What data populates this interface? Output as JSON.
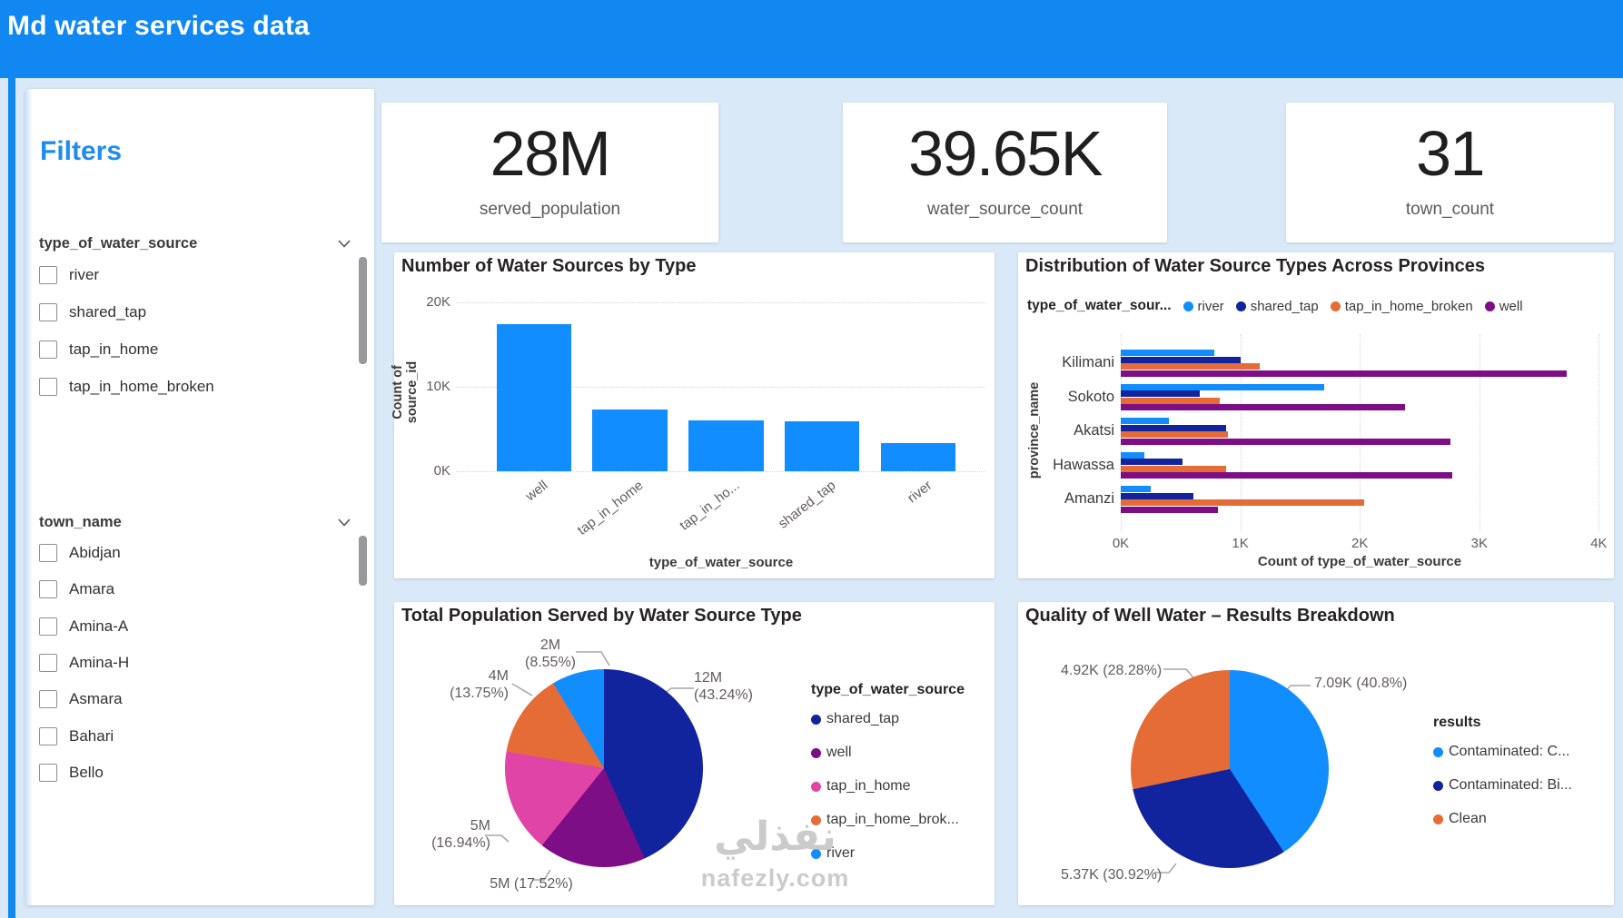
{
  "header": {
    "title": "Md water services data"
  },
  "filters": {
    "title": "Filters",
    "sections": [
      {
        "label": "type_of_water_source",
        "options": [
          "river",
          "shared_tap",
          "tap_in_home",
          "tap_in_home_broken"
        ]
      },
      {
        "label": "town_name",
        "options": [
          "Abidjan",
          "Amara",
          "Amina-A",
          "Amina-H",
          "Asmara",
          "Bahari",
          "Bello"
        ]
      }
    ]
  },
  "kpis": [
    {
      "value": "28M",
      "label": "served_population"
    },
    {
      "value": "39.65K",
      "label": "water_source_count"
    },
    {
      "value": "31",
      "label": "town_count"
    }
  ],
  "watermark": {
    "line1": "نفذلي",
    "line2": "nafezly.com"
  },
  "colors": {
    "header_blue": "#1187F2",
    "page_background": "#DAE9F8",
    "accent_text": "#1E8CEF"
  },
  "chart_data": [
    {
      "type": "bar",
      "title": "Number of Water Sources by Type",
      "ylabel": "Count of source_id",
      "xlabel": "type_of_water_source",
      "categories": [
        "well",
        "tap_in_home",
        "tap_in_ho...",
        "shared_tap",
        "river"
      ],
      "values_k": [
        17.4,
        7.3,
        6.0,
        5.9,
        3.3
      ],
      "ylim_k": [
        0,
        20
      ],
      "yticks": [
        "20K",
        "10K",
        "0K"
      ],
      "bar_color": "#118DFF",
      "grid": true
    },
    {
      "type": "bar-horizontal-grouped",
      "title": "Distribution of Water Source Types Across Provinces",
      "legend_label": "type_of_water_sour...",
      "legend_position": "top",
      "ylabel": "province_name",
      "xlabel": "Count of type_of_water_source",
      "categories": [
        "Kilimani",
        "Sokoto",
        "Akatsi",
        "Hawassa",
        "Amanzi"
      ],
      "xticks": [
        "0K",
        "1K",
        "2K",
        "3K",
        "4K"
      ],
      "xlim_k": [
        0,
        4
      ],
      "series": [
        {
          "name": "river",
          "color": "#118DFF",
          "values_k": [
            0.78,
            1.7,
            0.4,
            0.2,
            0.25
          ]
        },
        {
          "name": "shared_tap",
          "color": "#12239E",
          "values_k": [
            1.0,
            0.66,
            0.88,
            0.52,
            0.61
          ]
        },
        {
          "name": "tap_in_home_broken",
          "color": "#E66C37",
          "values_k": [
            1.16,
            0.83,
            0.9,
            0.88,
            2.04
          ]
        },
        {
          "name": "well",
          "color": "#7E0E85",
          "values_k": [
            3.73,
            2.38,
            2.76,
            2.77,
            0.81
          ]
        }
      ],
      "grid": true
    },
    {
      "type": "pie",
      "title": "Total Population Served by Water Source Type",
      "legend_title": "type_of_water_source",
      "legend_position": "right",
      "slices": [
        {
          "name": "shared_tap",
          "legend": "shared_tap",
          "pct": 43.24,
          "value": "12M",
          "color": "#12239E",
          "callout_l1": "12M",
          "callout_l2": "(43.24%)"
        },
        {
          "name": "well",
          "legend": "well",
          "pct": 17.52,
          "value": "5M",
          "color": "#7E0E85",
          "callout_l1": "5M (17.52%)",
          "callout_l2": ""
        },
        {
          "name": "tap_in_home",
          "legend": "tap_in_home",
          "pct": 16.94,
          "value": "5M",
          "color": "#E044A7",
          "callout_l1": "5M",
          "callout_l2": "(16.94%)"
        },
        {
          "name": "tap_in_home_broken",
          "legend": "tap_in_home_brok...",
          "pct": 13.75,
          "value": "4M",
          "color": "#E66C37",
          "callout_l1": "4M",
          "callout_l2": "(13.75%)"
        },
        {
          "name": "river",
          "legend": "river",
          "pct": 8.55,
          "value": "2M",
          "color": "#118DFF",
          "callout_l1": "2M",
          "callout_l2": "(8.55%)"
        }
      ]
    },
    {
      "type": "pie",
      "title": "Quality of Well Water – Results Breakdown",
      "legend_title": "results",
      "legend_position": "right",
      "slices": [
        {
          "name": "Contaminated: C...",
          "legend": "Contaminated: C...",
          "pct": 40.8,
          "value": "7.09K",
          "color": "#118DFF",
          "callout_l1": "7.09K (40.8%)",
          "callout_l2": ""
        },
        {
          "name": "Contaminated: Bi...",
          "legend": "Contaminated: Bi...",
          "pct": 30.92,
          "value": "5.37K",
          "color": "#12239E",
          "callout_l1": "5.37K (30.92%)",
          "callout_l2": ""
        },
        {
          "name": "Clean",
          "legend": "Clean",
          "pct": 28.28,
          "value": "4.92K",
          "color": "#E66C37",
          "callout_l1": "4.92K (28.28%)",
          "callout_l2": ""
        }
      ]
    }
  ]
}
